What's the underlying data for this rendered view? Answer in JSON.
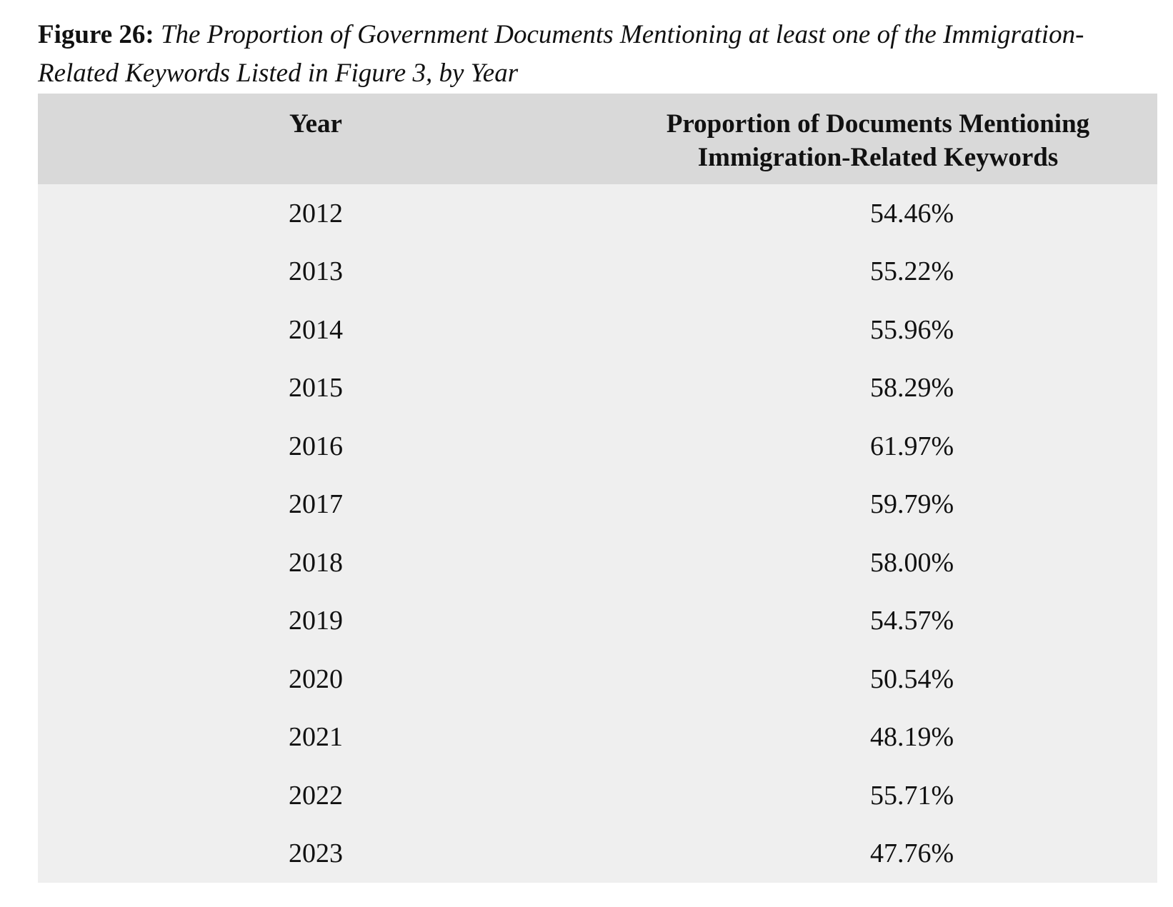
{
  "caption": {
    "label": "Figure 26:",
    "text": "The Proportion of Government Documents Mentioning at least one of the Immigration-Related Keywords Listed in Figure 3, by Year"
  },
  "table": {
    "headers": {
      "year": "Year",
      "proportion_line1": "Proportion of Documents Mentioning",
      "proportion_line2": "Immigration-Related Keywords"
    },
    "rows": [
      {
        "year": "2012",
        "proportion": "54.46%"
      },
      {
        "year": "2013",
        "proportion": "55.22%"
      },
      {
        "year": "2014",
        "proportion": "55.96%"
      },
      {
        "year": "2015",
        "proportion": "58.29%"
      },
      {
        "year": "2016",
        "proportion": "61.97%"
      },
      {
        "year": "2017",
        "proportion": "59.79%"
      },
      {
        "year": "2018",
        "proportion": "58.00%"
      },
      {
        "year": "2019",
        "proportion": "54.57%"
      },
      {
        "year": "2020",
        "proportion": "50.54%"
      },
      {
        "year": "2021",
        "proportion": "48.19%"
      },
      {
        "year": "2022",
        "proportion": "55.71%"
      },
      {
        "year": "2023",
        "proportion": "47.76%"
      }
    ]
  },
  "colors": {
    "header_bg": "#d9d9d9",
    "row_bg": "#efefef",
    "text": "#111111"
  }
}
